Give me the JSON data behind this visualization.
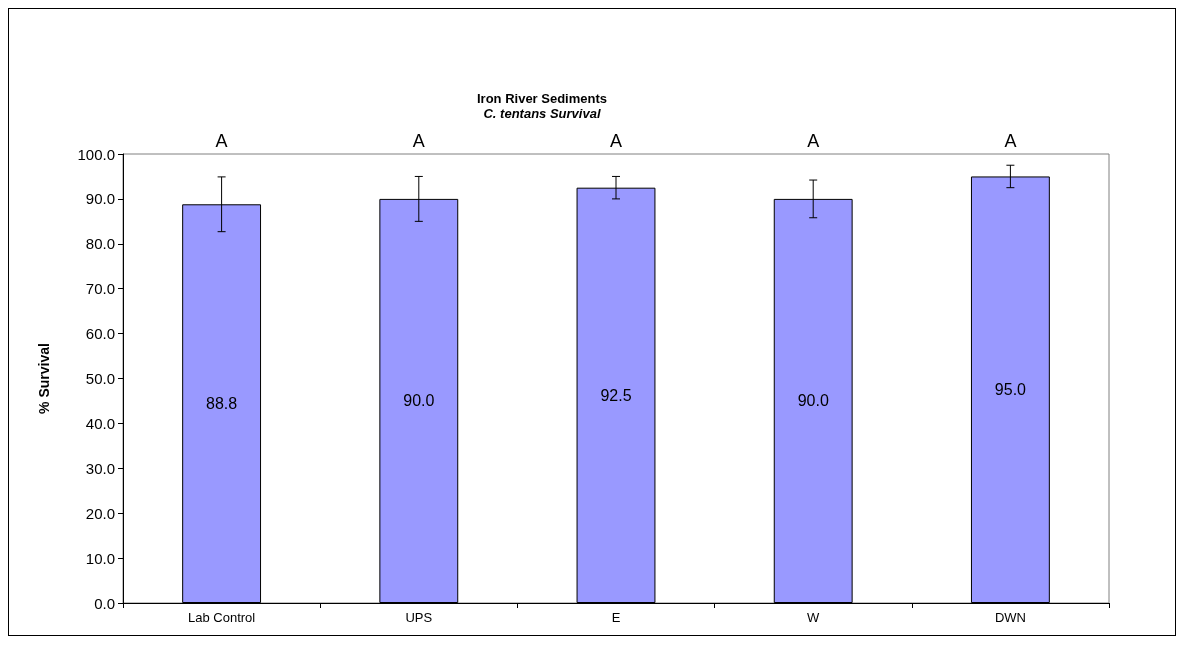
{
  "chart_data": {
    "type": "bar",
    "title": "Iron River Sediments",
    "subtitle": "C. tentans Survival",
    "ylabel": "% Survival",
    "categories": [
      "Lab Control",
      "UPS",
      "E",
      "W",
      "DWN"
    ],
    "series": [
      {
        "color": "#9999ff",
        "values": [
          88.8,
          90.0,
          92.5,
          90.0,
          95.0
        ],
        "value_labels": [
          "88.8",
          "90.0",
          "92.5",
          "90.0",
          "95.0"
        ],
        "errors": [
          6.1,
          5.0,
          2.5,
          4.2,
          2.5
        ]
      }
    ],
    "ylim": [
      0,
      100
    ],
    "yticks": [
      {
        "value": 0,
        "label": "0.0"
      },
      {
        "value": 10,
        "label": "10.0"
      },
      {
        "value": 20,
        "label": "20.0"
      },
      {
        "value": 30,
        "label": "30.0"
      },
      {
        "value": 40,
        "label": "40.0"
      },
      {
        "value": 50,
        "label": "50.0"
      },
      {
        "value": 60,
        "label": "60.0"
      },
      {
        "value": 70,
        "label": "70.0"
      },
      {
        "value": 80,
        "label": "80.0"
      },
      {
        "value": 90,
        "label": "90.0"
      },
      {
        "value": 100,
        "label": "100.0"
      }
    ],
    "annotations": [
      "A",
      "A",
      "A",
      "A",
      "A"
    ],
    "grid": false
  }
}
